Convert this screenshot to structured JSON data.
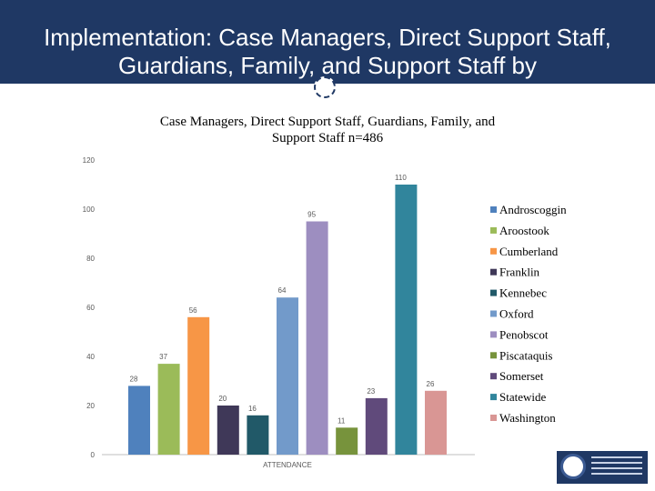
{
  "slide": {
    "title": "Implementation:  Case Managers, Direct Support Staff, Guardians, Family, and Support Staff by"
  },
  "chart_data": {
    "type": "bar",
    "title_line1": "Case Managers, Direct Support Staff, Guardians, Family, and",
    "title_line2": "Support Staff n=486",
    "categories": [
      "ATTENDANCE"
    ],
    "xlabel": "ATTENDANCE",
    "ylabel": "",
    "ylim": [
      0,
      120
    ],
    "yticks": [
      0,
      20,
      40,
      60,
      80,
      100,
      120
    ],
    "grid": false,
    "legend_position": "right",
    "series": [
      {
        "name": "Androscoggin",
        "values": [
          28
        ],
        "color": "#4f81bd"
      },
      {
        "name": "Aroostook",
        "values": [
          37
        ],
        "color": "#9bbb59"
      },
      {
        "name": "Cumberland",
        "values": [
          56
        ],
        "color": "#f79646"
      },
      {
        "name": "Franklin",
        "values": [
          20
        ],
        "color": "#3f3858"
      },
      {
        "name": "Kennebec",
        "values": [
          16
        ],
        "color": "#215968"
      },
      {
        "name": "Oxford",
        "values": [
          64
        ],
        "color": "#729aca"
      },
      {
        "name": "Penobscot",
        "values": [
          95
        ],
        "color": "#9d8ec0"
      },
      {
        "name": "Piscataquis",
        "values": [
          11
        ],
        "color": "#77933c"
      },
      {
        "name": "Somerset",
        "values": [
          23
        ],
        "color": "#604a7b"
      },
      {
        "name": "Statewide",
        "values": [
          110
        ],
        "color": "#31859c"
      },
      {
        "name": "Washington",
        "values": [
          26
        ],
        "color": "#d99694"
      }
    ]
  },
  "logo": {
    "name": "state-department-logo"
  }
}
